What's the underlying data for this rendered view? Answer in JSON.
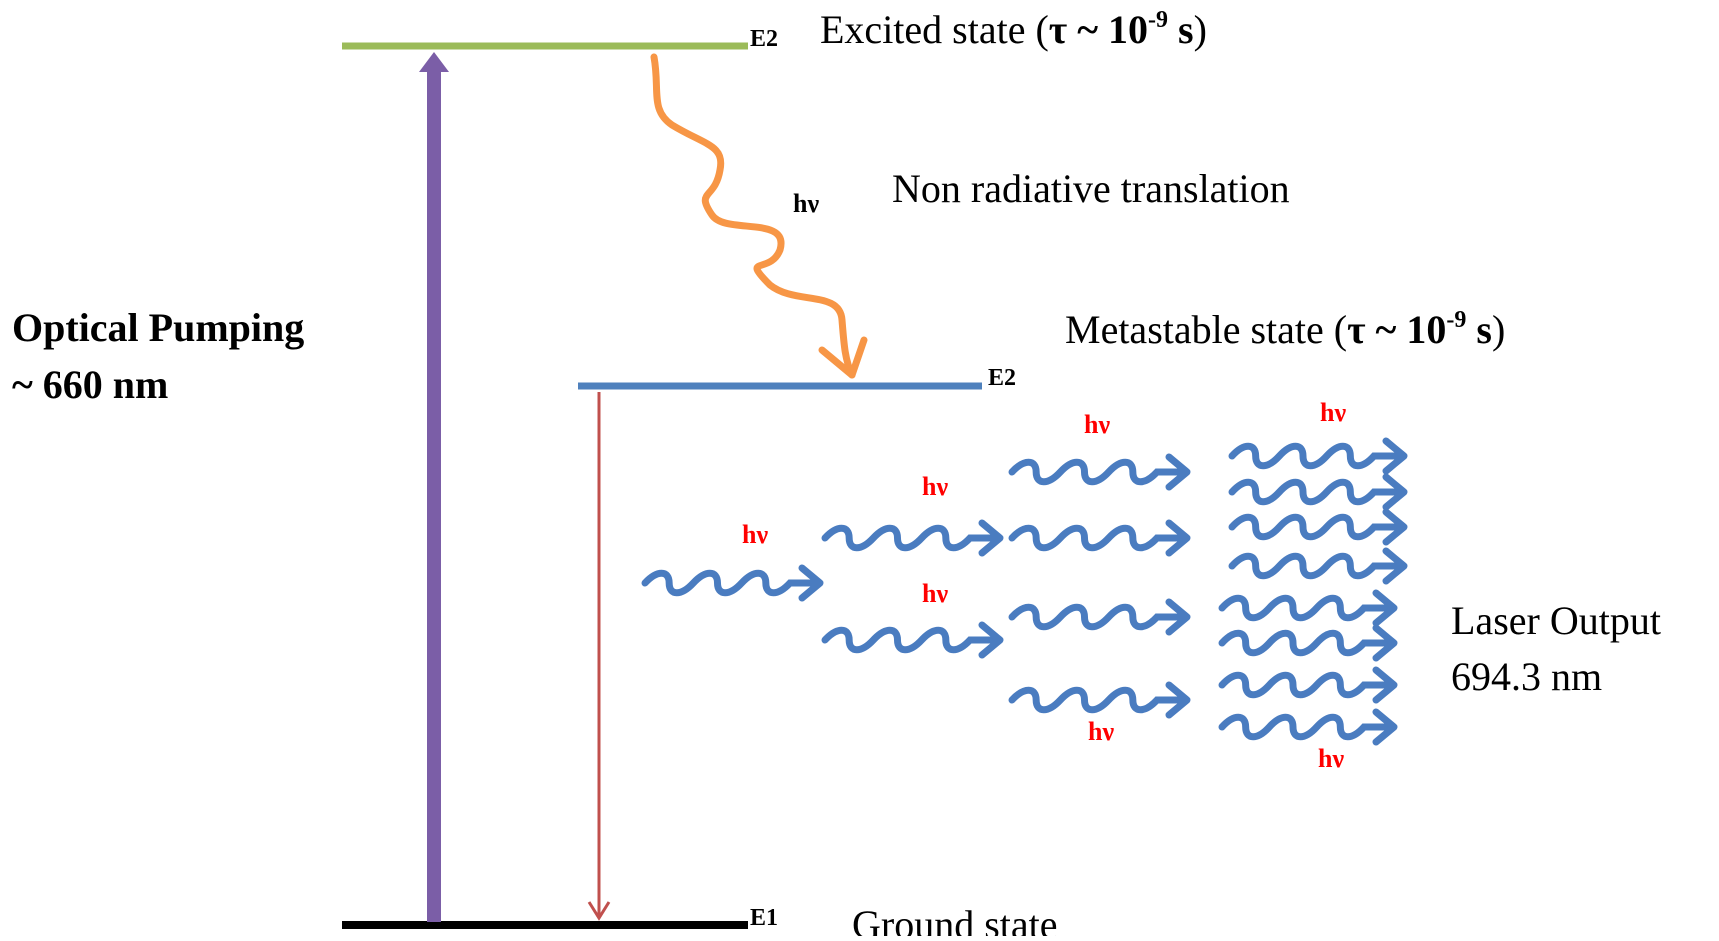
{
  "levels": {
    "excited": {
      "tag": "E2",
      "label": "Excited state (",
      "tau": "τ ~ 10",
      "exp": "-9",
      "unit": " s",
      "close": ")",
      "color": "#9bbb59"
    },
    "metastable": {
      "tag": "E2",
      "label": "Metastable state (",
      "tau": "τ ~ 10",
      "exp": "-9",
      "unit": " s",
      "close": ")",
      "color": "#4f81bd"
    },
    "ground": {
      "tag": "E1",
      "label": "Ground  state",
      "color": "#000000"
    }
  },
  "pumping": {
    "line1": "Optical Pumping",
    "line2": "~ 660 nm",
    "color": "#7b5ea7"
  },
  "nonradiative": {
    "label": "Non radiative translation",
    "photon": "hν",
    "color": "#f79646"
  },
  "decay": {
    "color": "#c0504d"
  },
  "photons": {
    "label": "hν",
    "label_color": "#ff0000",
    "wave_color": "#4a7cc0"
  },
  "output": {
    "line1": "Laser Output",
    "line2": "694.3 nm"
  }
}
